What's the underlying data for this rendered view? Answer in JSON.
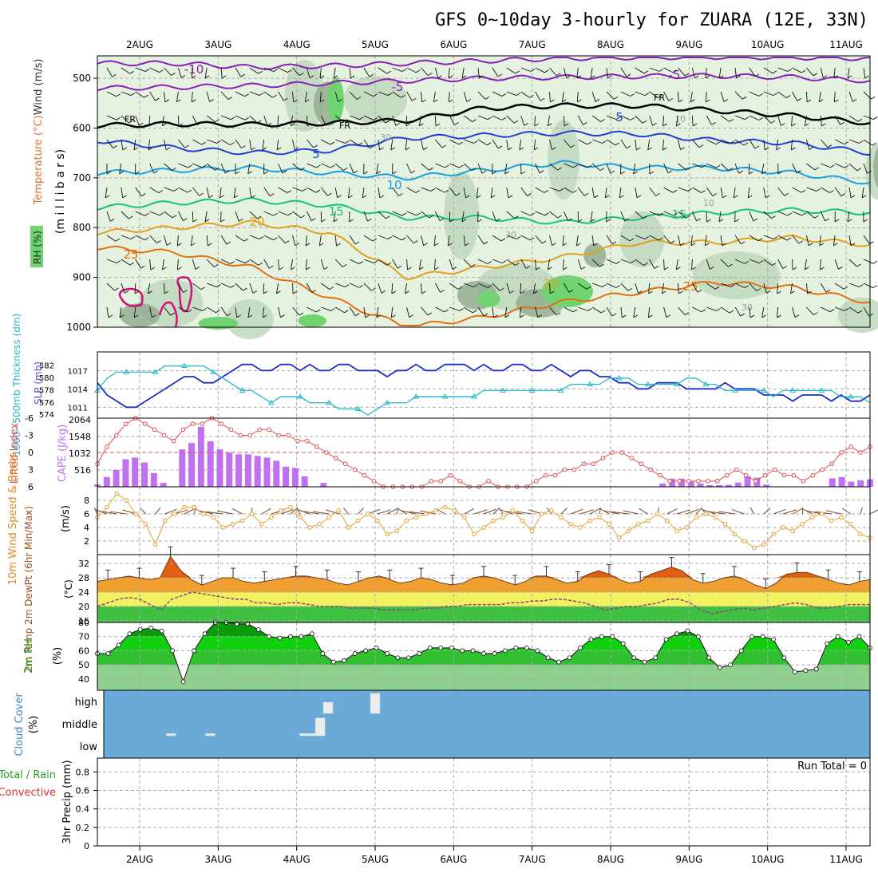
{
  "title": "GFS 0~10day 3-hourly for ZUARA (12E, 33N)",
  "dates": [
    "2AUG",
    "3AUG",
    "4AUG",
    "5AUG",
    "6AUG",
    "7AUG",
    "8AUG",
    "9AUG",
    "10AUG",
    "11AUG"
  ],
  "colors": {
    "purple": "#8a1fb8",
    "black": "#000000",
    "darkblue": "#1f3fcc",
    "cyan": "#1aa0e0",
    "green": "#17c27a",
    "orange": "#e0a020",
    "darkorange": "#e07010",
    "magenta": "#d0107a",
    "rh_light": "#e6f2e0",
    "rh_mid": "#c0d8bc",
    "rh_dark": "#8faa8c",
    "rh_green": "#6fd46f",
    "slp": "#1a2ecc",
    "thickness": "#22b8c8",
    "cape": "#c070f0",
    "li": "#e05050",
    "wind": "#e8a030",
    "barb": "#7a4a2a",
    "temp_fill": "#f0a030",
    "temp_top": "#e06010",
    "dew": "#8a4a7a",
    "cloud_bg": "#6aaad8",
    "cloud_box": "#ececec"
  },
  "chart_data": [
    {
      "type": "heatmap",
      "panel": "upper-air",
      "ylabel_parts": [
        "Wind (m/s)",
        "Temperature (°C)",
        "RH (%)"
      ],
      "yaxis_label": "(m i l l i b a r s)",
      "y_ticks": [
        500,
        600,
        700,
        800,
        900,
        1000
      ],
      "ylim": [
        455,
        1000
      ],
      "contour_labels": {
        "isotherms": [
          "-10",
          "-5",
          "FR",
          "5",
          "10",
          "15",
          "20",
          "25"
        ],
        "rh": [
          "30",
          "60"
        ],
        "right_side": [
          "-5",
          "FR",
          "5",
          "10",
          "15",
          "25",
          "30"
        ]
      },
      "isotherm_levels_mb": {
        "-10": [
          470,
          470,
          478,
          475,
          470,
          465,
          460,
          458,
          457,
          458,
          460
        ],
        "-5": [
          520,
          518,
          515,
          510,
          505,
          500,
          498,
          496,
          495,
          498,
          505
        ],
        "FR": [
          595,
          592,
          593,
          590,
          585,
          560,
          555,
          555,
          565,
          575,
          590
        ],
        "5": [
          625,
          640,
          650,
          645,
          620,
          615,
          610,
          612,
          625,
          630,
          650
        ],
        "10": [
          690,
          685,
          680,
          690,
          700,
          685,
          670,
          680,
          680,
          690,
          710
        ],
        "15": [
          760,
          750,
          745,
          755,
          780,
          780,
          790,
          780,
          770,
          765,
          770
        ],
        "20": [
          810,
          800,
          790,
          810,
          900,
          880,
          860,
          830,
          830,
          820,
          835
        ],
        "25": [
          840,
          850,
          880,
          940,
          1000,
          980,
          950,
          930,
          910,
          920,
          950
        ]
      }
    },
    {
      "type": "line",
      "panel": "slp-thickness",
      "ylabel": "1000~500mb Thickness (dm)",
      "ylabel2": "SLP (mb)",
      "y_ticks_left": [
        574,
        576,
        578,
        580,
        582
      ],
      "y_ticks_right": [
        1011,
        1014,
        1017
      ],
      "ylim_left": [
        573.5,
        583.5
      ],
      "series": [
        {
          "name": "SLP (mb)",
          "values": [
            1015,
            1013,
            1012,
            1011,
            1011,
            1012,
            1013,
            1014,
            1015,
            1016,
            1016,
            1015,
            1015,
            1016,
            1017,
            1018,
            1018,
            1017,
            1017,
            1018,
            1018,
            1017,
            1018,
            1017,
            1017,
            1018,
            1018,
            1017,
            1017,
            1017,
            1016,
            1017,
            1017,
            1018,
            1017,
            1017,
            1018,
            1018,
            1018,
            1017,
            1018,
            1017,
            1017,
            1018,
            1018,
            1017,
            1017,
            1018,
            1017,
            1016,
            1017,
            1017,
            1016,
            1016,
            1015,
            1015,
            1014,
            1014,
            1015,
            1015,
            1015,
            1014,
            1014,
            1014,
            1014,
            1015,
            1014,
            1014,
            1014,
            1013,
            1013,
            1013,
            1012,
            1013,
            1013,
            1013,
            1012,
            1013,
            1012,
            1012,
            1013
          ]
        },
        {
          "name": "Thickness (dm)",
          "values": [
            578,
            580,
            581,
            581,
            581,
            581,
            581,
            582,
            582,
            582,
            582,
            582,
            581,
            580,
            579,
            578,
            578,
            577,
            576,
            577,
            577,
            577,
            576,
            576,
            576,
            575,
            575,
            575,
            574,
            575,
            576,
            576,
            576,
            577,
            577,
            577,
            577,
            577,
            577,
            577,
            578,
            578,
            578,
            578,
            578,
            578,
            578,
            578,
            578,
            579,
            579,
            579,
            579,
            580,
            580,
            580,
            579,
            579,
            579,
            579,
            579,
            580,
            580,
            579,
            579,
            578,
            578,
            578,
            578,
            578,
            577,
            578,
            578,
            578,
            578,
            578,
            578,
            577,
            577,
            577,
            576
          ]
        }
      ]
    },
    {
      "type": "bar",
      "panel": "cape-li",
      "ylabel": "Lifted Index",
      "ylabel2": "CAPE (J/kg)",
      "li_ticks": [
        "-6",
        "-3",
        "0",
        "3",
        "6"
      ],
      "cape_ticks": [
        "516",
        "1032",
        "1548",
        "2064"
      ],
      "cape_max": 2064,
      "series": [
        {
          "name": "CAPE (J/kg)",
          "values": [
            70,
            300,
            520,
            850,
            900,
            750,
            420,
            120,
            0,
            1150,
            1350,
            1850,
            1400,
            1150,
            1050,
            1000,
            1000,
            950,
            900,
            800,
            620,
            580,
            320,
            0,
            120,
            0,
            0,
            0,
            0,
            0,
            0,
            0,
            0,
            0,
            0,
            0,
            0,
            0,
            0,
            0,
            0,
            0,
            0,
            0,
            0,
            0,
            0,
            0,
            0,
            0,
            0,
            0,
            0,
            0,
            0,
            0,
            0,
            0,
            0,
            0,
            100,
            250,
            250,
            160,
            100,
            50,
            50,
            60,
            130,
            320,
            280,
            70,
            0,
            0,
            0,
            0,
            0,
            0,
            260,
            300,
            160,
            200,
            230
          ]
        },
        {
          "name": "Lifted Index",
          "values": [
            2,
            -1,
            -3,
            -5,
            -6,
            -5,
            -4,
            -3,
            -2,
            -4,
            -5,
            -5,
            -6,
            -5,
            -4,
            -3,
            -3,
            -4,
            -4,
            -3,
            -3,
            -2,
            -2,
            -1,
            0,
            1,
            2,
            3,
            4,
            5,
            6,
            6,
            6,
            6,
            6,
            5,
            5,
            4,
            5,
            6,
            6,
            5,
            6,
            6,
            6,
            6,
            5,
            4,
            4,
            3,
            3,
            2,
            2,
            1,
            0,
            0,
            1,
            2,
            3,
            4,
            5,
            5,
            5,
            5,
            5,
            5,
            4,
            3,
            4,
            5,
            4,
            3,
            4,
            4,
            5,
            4,
            3,
            2,
            0,
            -1,
            0,
            -1
          ]
        }
      ]
    },
    {
      "type": "line",
      "panel": "wind10m",
      "ylabel": "10m Wind Speed & Barbs",
      "yunit": "(m/s)",
      "y_ticks": [
        2,
        4,
        6,
        8
      ],
      "ylim": [
        0,
        10
      ],
      "series": [
        {
          "name": "Speed",
          "values": [
            5.5,
            7,
            9,
            8,
            6,
            4.5,
            1.5,
            5,
            6,
            7,
            7,
            6,
            5.5,
            4,
            4.5,
            5,
            6,
            4.5,
            5.5,
            6.5,
            7,
            5.5,
            4,
            4.5,
            5.5,
            6.5,
            4,
            5,
            6,
            5,
            3,
            3.5,
            5,
            5.5,
            6,
            6.5,
            7,
            6.5,
            5.5,
            3,
            4,
            5,
            5.5,
            6.5,
            5,
            3.5,
            6,
            6.5,
            5.5,
            4.5,
            4,
            5,
            5.5,
            4.5,
            2.5,
            3.5,
            4.5,
            5,
            6,
            5,
            3.5,
            4,
            5.5,
            6,
            5.5,
            4.5,
            3,
            2,
            1,
            1.5,
            3,
            4,
            3.5,
            4.5,
            5.5,
            6,
            5,
            5.5,
            4.5,
            3,
            2.5
          ]
        }
      ]
    },
    {
      "type": "area",
      "panel": "temp",
      "ylabel": "2m Temp 2m DewPt (6hr Min/Max)",
      "yunit": "(°C)",
      "y_ticks": [
        16,
        20,
        24,
        28,
        32
      ],
      "ylim": [
        15.5,
        34.5
      ],
      "series": [
        {
          "name": "Temp",
          "values": [
            27,
            27.5,
            28,
            28.5,
            28,
            27.5,
            28,
            34,
            30,
            27.5,
            26,
            27,
            28,
            28,
            27,
            26.5,
            27,
            27.5,
            28,
            28.5,
            28.5,
            28,
            27.5,
            26.5,
            26,
            27,
            28,
            28.5,
            27.5,
            26.5,
            27,
            28,
            27.5,
            26.5,
            26,
            26.5,
            28,
            28.5,
            28,
            27,
            26,
            27,
            28.5,
            28.5,
            27.5,
            26.5,
            27,
            29,
            30,
            29,
            27.5,
            26.5,
            27,
            29,
            30,
            31,
            30,
            27.5,
            26.5,
            27,
            28,
            28.5,
            27.5,
            26,
            25,
            26.5,
            29,
            29.5,
            29.5,
            28.5,
            27.5,
            26.5,
            26,
            27,
            27.5
          ]
        },
        {
          "name": "DewPt",
          "values": [
            20,
            21,
            22,
            22.5,
            22,
            20.5,
            19,
            22,
            23,
            24,
            23.5,
            23,
            22.5,
            22,
            22,
            21,
            21,
            20.5,
            21,
            21,
            20.5,
            20,
            20,
            20,
            19.5,
            19.5,
            19.5,
            19,
            19,
            19,
            19,
            19.5,
            19.5,
            20,
            20,
            20.5,
            20.5,
            20.5,
            20.5,
            21,
            21,
            21.5,
            21.5,
            22,
            22,
            21.5,
            21,
            20,
            19,
            19.5,
            20,
            20,
            20.5,
            21,
            22,
            22,
            21,
            19,
            18,
            18.5,
            19,
            19.5,
            19,
            19.5,
            20,
            20.5,
            21,
            20.5,
            19.5,
            19.5,
            20,
            20.5,
            20.5,
            20.5
          ]
        }
      ]
    },
    {
      "type": "area",
      "panel": "rh",
      "ylabel": "2m RH",
      "yunit": "(%)",
      "y_ticks": [
        40,
        50,
        60,
        70,
        80
      ],
      "ylim": [
        32,
        80
      ],
      "series": [
        {
          "name": "2m RH",
          "values": [
            58,
            58,
            64,
            72,
            75,
            76,
            74,
            60,
            38,
            60,
            72,
            80,
            80,
            79,
            79,
            75,
            70,
            69,
            70,
            70,
            72,
            58,
            52,
            53,
            58,
            60,
            62,
            58,
            55,
            55,
            58,
            62,
            62,
            62,
            60,
            60,
            58,
            58,
            60,
            62,
            62,
            60,
            55,
            52,
            55,
            62,
            68,
            70,
            70,
            65,
            55,
            52,
            55,
            68,
            72,
            74,
            70,
            55,
            48,
            50,
            60,
            70,
            70,
            68,
            55,
            45,
            46,
            47,
            65,
            70,
            66,
            70,
            62
          ]
        }
      ]
    },
    {
      "type": "heatmap",
      "panel": "cloud",
      "ylabel": "Cloud Cover",
      "yunit": "(%)",
      "y_labels": [
        "high",
        "middle",
        "low"
      ],
      "blocks": [
        {
          "day": 0.9,
          "layer": "middle",
          "fraction": 0.1
        },
        {
          "day": 1.4,
          "layer": "middle",
          "fraction": 0.1
        },
        {
          "day": 2.6,
          "layer": "middle",
          "fraction": 0.1
        },
        {
          "day": 2.7,
          "layer": "middle",
          "fraction": 0.1
        },
        {
          "day": 2.8,
          "layer": "middle",
          "fraction": 0.8
        },
        {
          "day": 2.9,
          "layer": "high",
          "fraction": 0.5
        },
        {
          "day": 3.5,
          "layer": "high",
          "fraction": 0.9
        }
      ]
    },
    {
      "type": "bar",
      "panel": "precip",
      "ylabel_parts": [
        "Total / Rain",
        "Convective"
      ],
      "ylabel": "3hr Precip (mm)",
      "y_ticks": [
        "0",
        "0.2",
        "0.4",
        "0.6",
        "0.8"
      ],
      "ylim": [
        0,
        0.95
      ],
      "run_total": "Run Total = 0",
      "values": []
    }
  ]
}
